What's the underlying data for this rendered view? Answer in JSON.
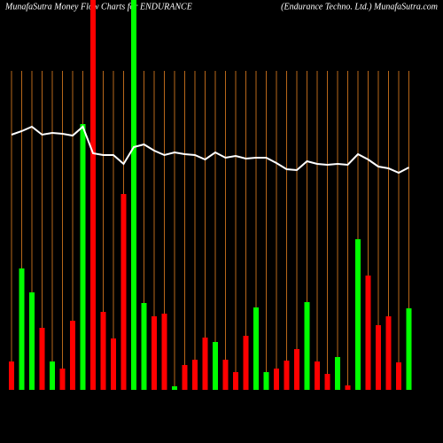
{
  "chart_data": {
    "type": "bar",
    "title": "MunafaSutra  Money Flow  Charts for ENDURANCE",
    "subtitle": "(Endurance   Techno. Ltd.) MunafaSutra.com",
    "categories": [
      null,
      null,
      null,
      null,
      null,
      null,
      null,
      null,
      null,
      null,
      null,
      null,
      null,
      null,
      null,
      null,
      null,
      null,
      null,
      null,
      null,
      null,
      null,
      null,
      null,
      null,
      null,
      null,
      null,
      null,
      null,
      null,
      null,
      null,
      null,
      null,
      null,
      null,
      null,
      null
    ],
    "values": [
      32,
      137,
      110,
      70,
      32,
      24,
      78,
      300,
      440,
      88,
      58,
      221,
      440,
      98,
      83,
      86,
      4,
      28,
      34,
      59,
      54,
      34,
      20,
      61,
      93,
      20,
      24,
      33,
      46,
      99,
      32,
      18,
      37,
      5,
      170,
      129,
      73,
      83,
      31,
      92
    ],
    "colors": [
      "#ff0000",
      "#00ff00",
      "#00ff00",
      "#ff0000",
      "#00ff00",
      "#ff0000",
      "#ff0000",
      "#00ff00",
      "#ff0000",
      "#ff0000",
      "#ff0000",
      "#ff0000",
      "#00ff00",
      "#00ff00",
      "#ff0000",
      "#ff0000",
      "#00ff00",
      "#ff0000",
      "#ff0000",
      "#ff0000",
      "#00ff00",
      "#ff0000",
      "#ff0000",
      "#ff0000",
      "#00ff00",
      "#00ff00",
      "#ff0000",
      "#ff0000",
      "#ff0000",
      "#00ff00",
      "#ff0000",
      "#ff0000",
      "#00ff00",
      "#ff0000",
      "#00ff00",
      "#ff0000",
      "#ff0000",
      "#ff0000",
      "#ff0000",
      "#00ff00"
    ],
    "line": {
      "color": "#ffffff",
      "values": [
        288,
        292,
        297,
        288,
        290,
        289,
        287,
        297,
        267,
        265,
        265,
        255,
        274,
        277,
        270,
        265,
        268,
        266,
        265,
        260,
        268,
        262,
        264,
        261,
        262,
        262,
        256,
        249,
        248,
        258,
        255,
        254,
        255,
        254,
        266,
        260,
        252,
        250,
        245,
        251
      ]
    },
    "ylim": [
      0,
      440
    ],
    "grid": true,
    "grid_color": "#b8671a"
  }
}
